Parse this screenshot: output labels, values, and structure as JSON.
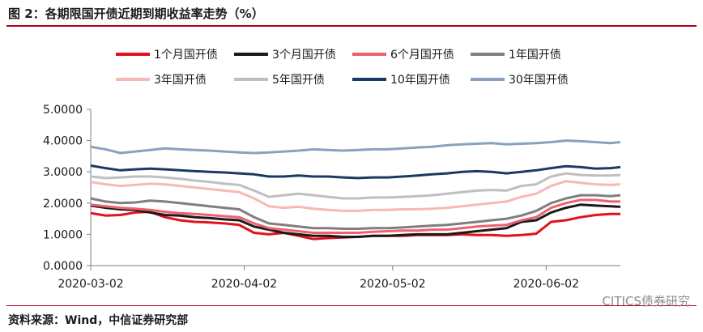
{
  "figure_title": "图 2：各期限国开债近期到期收益率走势（%）",
  "source_note": "资料来源：Wind，中信证券研究部",
  "watermark": "CITICS债券研究",
  "chart_data": {
    "type": "line",
    "title": "",
    "xlabel": "",
    "ylabel": "",
    "ylim": [
      0,
      5
    ],
    "x_ticks": [
      "2020-03-02",
      "2020-04-02",
      "2020-05-02",
      "2020-06-02"
    ],
    "x_range": [
      "2020-03-02",
      "2020-06-17"
    ],
    "y_ticks": [
      "0.0000",
      "1.0000",
      "2.0000",
      "3.0000",
      "4.0000",
      "5.0000"
    ],
    "grid": false,
    "legend_position": "top",
    "dates": [
      "2020-03-02",
      "2020-03-05",
      "2020-03-08",
      "2020-03-11",
      "2020-03-14",
      "2020-03-17",
      "2020-03-20",
      "2020-03-23",
      "2020-03-26",
      "2020-03-29",
      "2020-04-01",
      "2020-04-04",
      "2020-04-07",
      "2020-04-10",
      "2020-04-13",
      "2020-04-16",
      "2020-04-19",
      "2020-04-22",
      "2020-04-25",
      "2020-04-28",
      "2020-05-01",
      "2020-05-04",
      "2020-05-07",
      "2020-05-10",
      "2020-05-13",
      "2020-05-16",
      "2020-05-19",
      "2020-05-22",
      "2020-05-25",
      "2020-05-28",
      "2020-05-31",
      "2020-06-03",
      "2020-06-06",
      "2020-06-09",
      "2020-06-12",
      "2020-06-15",
      "2020-06-17"
    ],
    "series": [
      {
        "name": "1个月国开债",
        "color": "#e3111b",
        "width": 3,
        "values": [
          1.68,
          1.6,
          1.62,
          1.7,
          1.72,
          1.55,
          1.45,
          1.4,
          1.38,
          1.35,
          1.3,
          1.05,
          1.0,
          1.05,
          0.95,
          0.85,
          0.88,
          0.9,
          0.92,
          0.95,
          0.95,
          0.95,
          0.98,
          0.98,
          0.98,
          1.0,
          0.98,
          0.98,
          0.95,
          0.98,
          1.02,
          1.4,
          1.45,
          1.55,
          1.62,
          1.65,
          1.65
        ]
      },
      {
        "name": "3个月国开债",
        "color": "#1a1a1a",
        "width": 3,
        "values": [
          1.92,
          1.85,
          1.8,
          1.78,
          1.7,
          1.62,
          1.6,
          1.55,
          1.52,
          1.48,
          1.45,
          1.25,
          1.15,
          1.05,
          1.0,
          0.95,
          0.95,
          0.92,
          0.92,
          0.95,
          0.95,
          0.98,
          1.0,
          1.0,
          1.0,
          1.05,
          1.1,
          1.15,
          1.2,
          1.4,
          1.45,
          1.7,
          1.85,
          1.95,
          1.92,
          1.9,
          1.88
        ]
      },
      {
        "name": "6个月国开债",
        "color": "#f0606e",
        "width": 3,
        "values": [
          1.95,
          1.9,
          1.85,
          1.82,
          1.78,
          1.72,
          1.68,
          1.65,
          1.62,
          1.58,
          1.55,
          1.35,
          1.2,
          1.15,
          1.1,
          1.05,
          1.05,
          1.05,
          1.05,
          1.08,
          1.1,
          1.12,
          1.12,
          1.15,
          1.15,
          1.2,
          1.25,
          1.28,
          1.3,
          1.45,
          1.55,
          1.85,
          2.0,
          2.1,
          2.1,
          2.05,
          2.05
        ]
      },
      {
        "name": "1年国开债",
        "color": "#7f7f7f",
        "width": 3,
        "values": [
          2.15,
          2.05,
          2.0,
          2.02,
          2.08,
          2.05,
          2.0,
          1.95,
          1.9,
          1.85,
          1.8,
          1.55,
          1.35,
          1.3,
          1.25,
          1.2,
          1.2,
          1.18,
          1.18,
          1.2,
          1.2,
          1.22,
          1.25,
          1.28,
          1.3,
          1.35,
          1.4,
          1.45,
          1.5,
          1.6,
          1.75,
          2.0,
          2.15,
          2.25,
          2.25,
          2.22,
          2.25
        ]
      },
      {
        "name": "3年国开债",
        "color": "#f7b9b4",
        "width": 3,
        "values": [
          2.68,
          2.6,
          2.55,
          2.58,
          2.62,
          2.6,
          2.55,
          2.5,
          2.45,
          2.4,
          2.35,
          2.15,
          1.9,
          1.85,
          1.88,
          1.82,
          1.78,
          1.75,
          1.75,
          1.78,
          1.78,
          1.8,
          1.8,
          1.82,
          1.85,
          1.9,
          1.95,
          2.0,
          2.05,
          2.2,
          2.3,
          2.55,
          2.7,
          2.65,
          2.6,
          2.58,
          2.6
        ]
      },
      {
        "name": "5年国开债",
        "color": "#bfbfbf",
        "width": 3,
        "values": [
          2.85,
          2.8,
          2.82,
          2.85,
          2.85,
          2.82,
          2.78,
          2.72,
          2.68,
          2.62,
          2.58,
          2.4,
          2.2,
          2.25,
          2.3,
          2.25,
          2.2,
          2.15,
          2.15,
          2.18,
          2.18,
          2.2,
          2.22,
          2.25,
          2.3,
          2.35,
          2.4,
          2.42,
          2.4,
          2.55,
          2.6,
          2.85,
          2.95,
          2.9,
          2.88,
          2.88,
          2.9
        ]
      },
      {
        "name": "10年国开债",
        "color": "#1b3a63",
        "width": 3,
        "values": [
          3.2,
          3.12,
          3.05,
          3.08,
          3.1,
          3.08,
          3.05,
          3.02,
          3.0,
          2.98,
          2.95,
          2.92,
          2.85,
          2.85,
          2.88,
          2.85,
          2.85,
          2.82,
          2.8,
          2.82,
          2.82,
          2.85,
          2.88,
          2.92,
          2.95,
          3.0,
          3.02,
          3.0,
          2.95,
          3.0,
          3.05,
          3.12,
          3.18,
          3.15,
          3.1,
          3.12,
          3.15
        ]
      },
      {
        "name": "30年国开债",
        "color": "#8aa1bd",
        "width": 3,
        "values": [
          3.8,
          3.72,
          3.6,
          3.65,
          3.7,
          3.75,
          3.72,
          3.7,
          3.68,
          3.65,
          3.62,
          3.6,
          3.62,
          3.65,
          3.68,
          3.72,
          3.7,
          3.68,
          3.7,
          3.72,
          3.72,
          3.75,
          3.78,
          3.8,
          3.85,
          3.88,
          3.9,
          3.92,
          3.88,
          3.9,
          3.92,
          3.95,
          4.0,
          3.98,
          3.95,
          3.92,
          3.95
        ]
      }
    ]
  }
}
